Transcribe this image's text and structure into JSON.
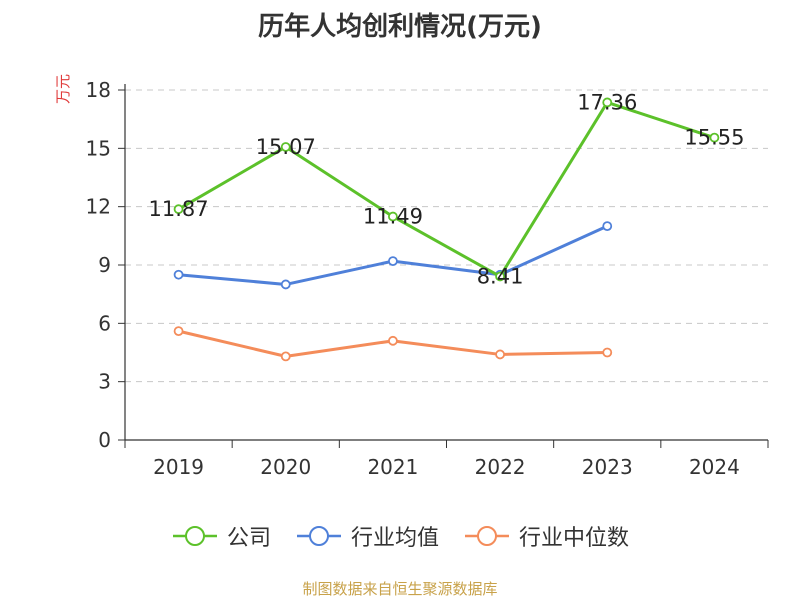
{
  "title": "历年人均创利情况(万元)",
  "unit_label": "万元",
  "source": "制图数据来自恒生聚源数据库",
  "chart_data": {
    "type": "line",
    "title": "历年人均创利情况(万元)",
    "ylabel": "万元",
    "xlabel": "",
    "categories": [
      "2019",
      "2020",
      "2021",
      "2022",
      "2023",
      "2024"
    ],
    "ylim": [
      0,
      18
    ],
    "yticks": [
      0,
      3,
      6,
      9,
      12,
      15,
      18
    ],
    "grid": true,
    "legend_position": "bottom",
    "series": [
      {
        "name": "公司",
        "color": "#5cc12a",
        "values": [
          11.87,
          15.07,
          11.49,
          8.41,
          17.36,
          15.55
        ],
        "labels": [
          "11.87",
          "15.07",
          "11.49",
          "8.41",
          "17.36",
          "15.55"
        ]
      },
      {
        "name": "行业均值",
        "color": "#4f80d9",
        "values": [
          8.5,
          8.0,
          9.2,
          8.5,
          11.0,
          null
        ]
      },
      {
        "name": "行业中位数",
        "color": "#f48c5a",
        "values": [
          5.6,
          4.3,
          5.1,
          4.4,
          4.5,
          null
        ]
      }
    ]
  }
}
